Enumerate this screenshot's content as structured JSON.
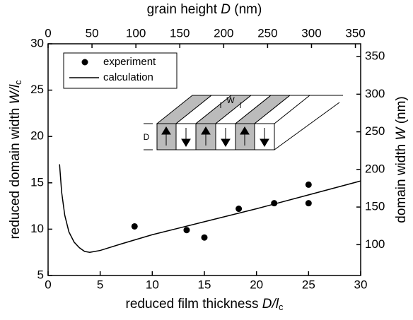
{
  "chart_data": {
    "type": "scatter-line",
    "x_label": {
      "text": "reduced film thickness ",
      "var": "D/l",
      "sub": "c"
    },
    "y_label": {
      "text": "reduced domain width ",
      "var": "W/l",
      "sub": "c"
    },
    "x2_label": {
      "text": "grain height ",
      "var": "D",
      "unit": " (nm)"
    },
    "y2_label": {
      "text": "domain width ",
      "var": "W",
      "unit": " (nm)"
    },
    "xlim": [
      0,
      30
    ],
    "xticks": [
      0,
      5,
      10,
      15,
      20,
      25,
      30
    ],
    "ylim": [
      5,
      30
    ],
    "yticks": [
      5,
      10,
      15,
      20,
      25,
      30
    ],
    "x2lim": [
      0,
      356
    ],
    "x2ticks": [
      0,
      50,
      100,
      150,
      200,
      250,
      300,
      350
    ],
    "y2lim": [
      59,
      367
    ],
    "y2ticks": [
      100,
      150,
      200,
      250,
      300,
      350
    ],
    "legend": "upper left",
    "series": [
      {
        "name": "experiment",
        "kind": "scatter",
        "color": "#000000",
        "x": [
          8.3,
          13.3,
          15,
          18.3,
          21.7,
          25,
          25
        ],
        "values": [
          10.3,
          9.9,
          9.1,
          12.2,
          12.8,
          14.8,
          12.8
        ]
      },
      {
        "name": "calculation",
        "kind": "line",
        "color": "#000000",
        "x": [
          1.1,
          1.3,
          1.6,
          2,
          2.5,
          3,
          3.5,
          4,
          5,
          7,
          10,
          15,
          20,
          25,
          30
        ],
        "values": [
          17,
          14,
          11.5,
          9.7,
          8.6,
          8,
          7.6,
          7.5,
          7.7,
          8.4,
          9.4,
          10.8,
          12.2,
          13.7,
          15.2
        ]
      }
    ],
    "inset": {
      "w_label": "W",
      "d_label": "D"
    }
  }
}
